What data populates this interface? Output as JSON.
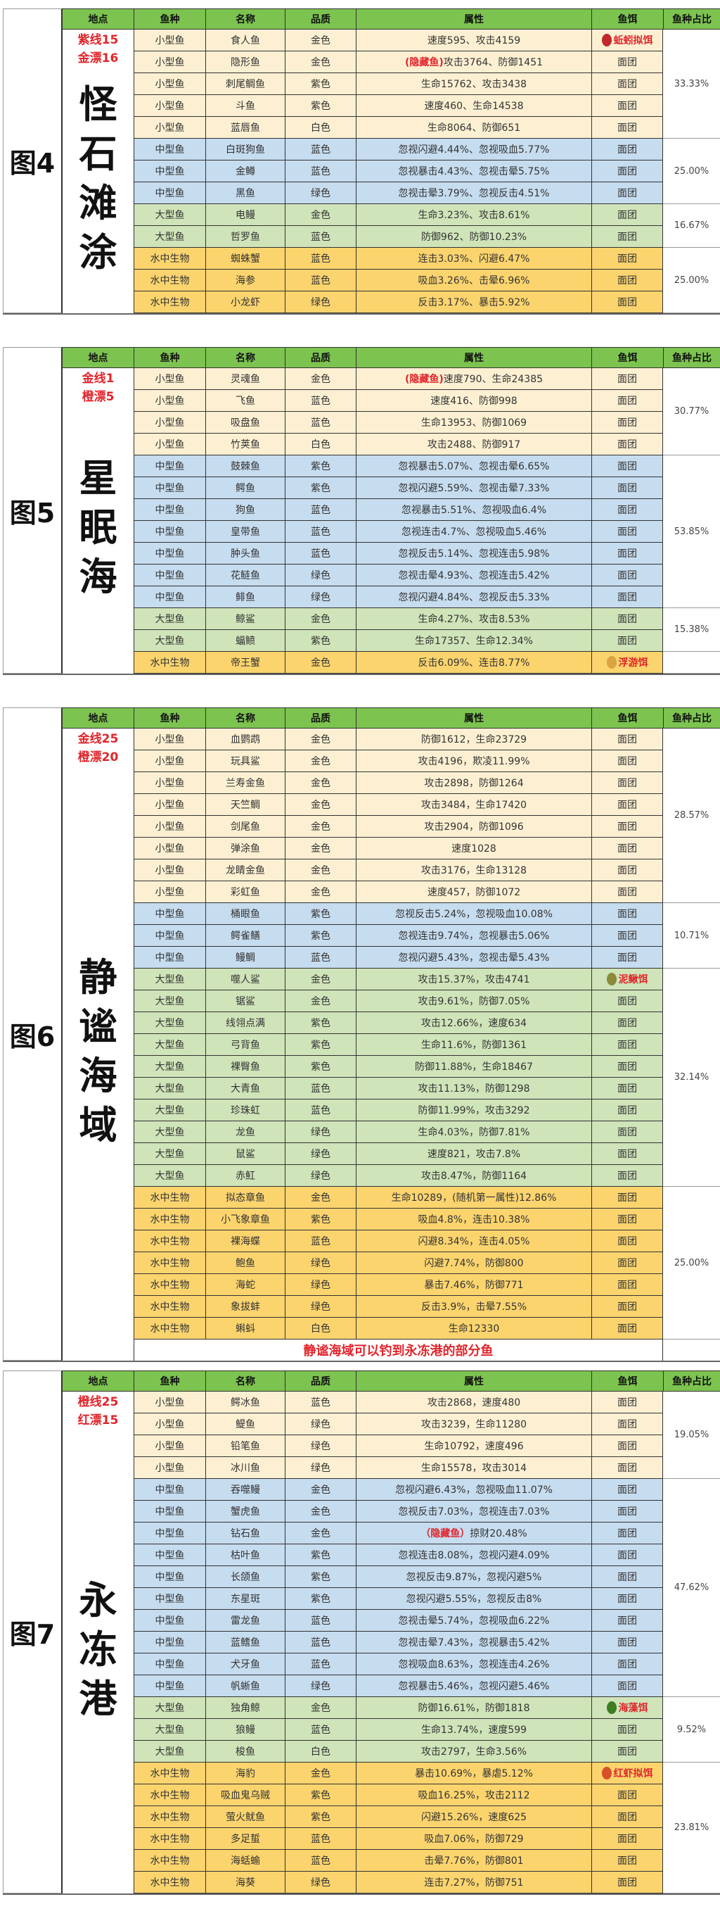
{
  "columns": [
    "地点",
    "鱼种",
    "名称",
    "品质",
    "属性",
    "鱼饵",
    "鱼种占比"
  ],
  "colors": {
    "header": "#7cc350",
    "小型鱼": "#fdf0d2",
    "中型鱼": "#c6dcef",
    "大型鱼": "#cfe4b9",
    "水中生物": "#fbd46e",
    "highlight": "#e0252b"
  },
  "tables": [
    {
      "fig": "图4",
      "place": "怪石滩涂",
      "rod": [
        "紫线15",
        "金漂16"
      ],
      "groups": [
        {
          "type": "小型鱼",
          "ratio": "33.33%",
          "fish": [
            {
              "name": "食人鱼",
              "quality": "金色",
              "attr": "速度595、攻击4159",
              "bait": "蚯蚓拟饵",
              "bait_icon": "worm-icon",
              "bait_color": "#c0282d"
            },
            {
              "name": "隐形鱼",
              "quality": "金色",
              "hidden": "(隐藏鱼)",
              "attr": "攻击3764、防御1451",
              "bait": "面团"
            },
            {
              "name": "刺尾鲷鱼",
              "quality": "紫色",
              "attr": "生命15762、攻击3438",
              "bait": "面团"
            },
            {
              "name": "斗鱼",
              "quality": "紫色",
              "attr": "速度460、生命14538",
              "bait": "面团"
            },
            {
              "name": "蓝唇鱼",
              "quality": "白色",
              "attr": "生命8064、防御651",
              "bait": "面团"
            }
          ]
        },
        {
          "type": "中型鱼",
          "ratio": "25.00%",
          "fish": [
            {
              "name": "白斑狗鱼",
              "quality": "蓝色",
              "attr": "忽视闪避4.44%、忽视吸血5.77%",
              "bait": "面团"
            },
            {
              "name": "金鳟",
              "quality": "蓝色",
              "attr": "忽视暴击4.43%、忽视击晕5.75%",
              "bait": "面团"
            },
            {
              "name": "黑鱼",
              "quality": "绿色",
              "attr": "忽视击晕3.79%、忽视反击4.51%",
              "bait": "面团"
            }
          ]
        },
        {
          "type": "大型鱼",
          "ratio": "16.67%",
          "fish": [
            {
              "name": "电鳗",
              "quality": "金色",
              "attr": "生命3.23%、攻击8.61%",
              "bait": "面团"
            },
            {
              "name": "哲罗鱼",
              "quality": "蓝色",
              "attr": "防御962、防御10.23%",
              "bait": "面团"
            }
          ]
        },
        {
          "type": "水中生物",
          "ratio": "25.00%",
          "fish": [
            {
              "name": "蜘蛛蟹",
              "quality": "蓝色",
              "attr": "连击3.03%、闪避6.47%",
              "bait": "面团"
            },
            {
              "name": "海参",
              "quality": "蓝色",
              "attr": "吸血3.26%、击晕6.96%",
              "bait": "面团"
            },
            {
              "name": "小龙虾",
              "quality": "绿色",
              "attr": "反击3.17%、暴击5.92%",
              "bait": "面团"
            }
          ]
        }
      ]
    },
    {
      "fig": "图5",
      "place": "星眠海",
      "rod": [
        "金线1",
        "橙漂5"
      ],
      "groups": [
        {
          "type": "小型鱼",
          "ratio": "30.77%",
          "fish": [
            {
              "name": "灵魂鱼",
              "quality": "金色",
              "hidden": "(隐藏鱼)",
              "attr": "速度790、生命24385",
              "bait": "面团"
            },
            {
              "name": "飞鱼",
              "quality": "蓝色",
              "attr": "速度416、防御998",
              "bait": "面团"
            },
            {
              "name": "吸盘鱼",
              "quality": "蓝色",
              "attr": "生命13953、防御1069",
              "bait": "面团"
            },
            {
              "name": "竹荚鱼",
              "quality": "白色",
              "attr": "攻击2488、防御917",
              "bait": "面团"
            }
          ]
        },
        {
          "type": "中型鱼",
          "ratio": "53.85%",
          "fish": [
            {
              "name": "鼓棘鱼",
              "quality": "紫色",
              "attr": "忽视暴击5.07%、忽视击晕6.65%",
              "bait": "面团"
            },
            {
              "name": "鳄鱼",
              "quality": "紫色",
              "attr": "忽视闪避5.59%、忽视击晕7.33%",
              "bait": "面团"
            },
            {
              "name": "狗鱼",
              "quality": "蓝色",
              "attr": "忽视暴击5.51%、忽视吸血6.4%",
              "bait": "面团"
            },
            {
              "name": "皇带鱼",
              "quality": "蓝色",
              "attr": "忽视连击4.7%、忽视吸血5.46%",
              "bait": "面团"
            },
            {
              "name": "肿头鱼",
              "quality": "蓝色",
              "attr": "忽视反击5.14%、忽视连击5.98%",
              "bait": "面团"
            },
            {
              "name": "花鲢鱼",
              "quality": "绿色",
              "attr": "忽视击晕4.93%、忽视连击5.42%",
              "bait": "面团"
            },
            {
              "name": "鲱鱼",
              "quality": "绿色",
              "attr": "忽视闪避4.84%、忽视反击5.33%",
              "bait": "面团"
            }
          ]
        },
        {
          "type": "大型鱼",
          "ratio": "15.38%",
          "fish": [
            {
              "name": "鲸鲨",
              "quality": "金色",
              "attr": "生命4.27%、攻击8.53%",
              "bait": "面团"
            },
            {
              "name": "蝠鲼",
              "quality": "紫色",
              "attr": "生命17357、生命12.34%",
              "bait": "面团"
            }
          ]
        },
        {
          "type": "水中生物",
          "ratio": "",
          "fish": [
            {
              "name": "帝王蟹",
              "quality": "金色",
              "attr": "反击6.09%、连击8.77%",
              "bait": "浮游饵",
              "bait_icon": "dragonfly-icon",
              "bait_color": "#d9a441"
            }
          ]
        }
      ]
    },
    {
      "fig": "图6",
      "place": "静谧海域",
      "rod": [
        "金线25",
        "橙漂20"
      ],
      "note": "静谧海域可以钓到永冻港的部分鱼",
      "groups": [
        {
          "type": "小型鱼",
          "ratio": "28.57%",
          "fish": [
            {
              "name": "血鹦鹉",
              "quality": "金色",
              "attr": "防御1612，生命23729",
              "bait": "面团"
            },
            {
              "name": "玩具鲨",
              "quality": "金色",
              "attr": "攻击4196，欺凌11.99%",
              "bait": "面团"
            },
            {
              "name": "兰寿金鱼",
              "quality": "金色",
              "attr": "攻击2898，防御1264",
              "bait": "面团"
            },
            {
              "name": "天竺鲷",
              "quality": "金色",
              "attr": "攻击3484，生命17420",
              "bait": "面团"
            },
            {
              "name": "剑尾鱼",
              "quality": "金色",
              "attr": "攻击2904，防御1096",
              "bait": "面团"
            },
            {
              "name": "弹涂鱼",
              "quality": "金色",
              "attr": "速度1028",
              "bait": "面团"
            },
            {
              "name": "龙睛金鱼",
              "quality": "金色",
              "attr": "攻击3176，生命13128",
              "bait": "面团"
            },
            {
              "name": "彩虹鱼",
              "quality": "金色",
              "attr": "速度457，防御1072",
              "bait": "面团"
            }
          ]
        },
        {
          "type": "中型鱼",
          "ratio": "10.71%",
          "fish": [
            {
              "name": "桶眼鱼",
              "quality": "紫色",
              "attr": "忽视反击5.24%，忽视吸血10.08%",
              "bait": "面团"
            },
            {
              "name": "鳄雀鳝",
              "quality": "紫色",
              "attr": "忽视连击9.74%，忽视暴击5.06%",
              "bait": "面团"
            },
            {
              "name": "鳗鲷",
              "quality": "蓝色",
              "attr": "忽视闪避5.43%，忽视击晕5.43%",
              "bait": "面团"
            }
          ]
        },
        {
          "type": "大型鱼",
          "ratio": "32.14%",
          "fish": [
            {
              "name": "噬人鲨",
              "quality": "金色",
              "attr": "攻击15.37%，攻击4741",
              "bait": "泥鳅饵",
              "bait_icon": "loach-icon",
              "bait_color": "#8a8a3a"
            },
            {
              "name": "锯鲨",
              "quality": "金色",
              "attr": "攻击9.61%，防御7.05%",
              "bait": "面团"
            },
            {
              "name": "线翎点满",
              "quality": "紫色",
              "attr": "攻击12.66%，速度634",
              "bait": "面团"
            },
            {
              "name": "弓背鱼",
              "quality": "紫色",
              "attr": "生命11.6%，防御1361",
              "bait": "面团"
            },
            {
              "name": "裸臀鱼",
              "quality": "紫色",
              "attr": "防御11.88%，生命18467",
              "bait": "面团"
            },
            {
              "name": "大青鱼",
              "quality": "蓝色",
              "attr": "攻击11.13%，防御1298",
              "bait": "面团"
            },
            {
              "name": "珍珠虹",
              "quality": "蓝色",
              "attr": "防御11.99%，攻击3292",
              "bait": "面团"
            },
            {
              "name": "龙鱼",
              "quality": "绿色",
              "attr": "生命4.03%，防御7.81%",
              "bait": "面团"
            },
            {
              "name": "鼠鲨",
              "quality": "绿色",
              "attr": "速度821，攻击7.8%",
              "bait": "面团"
            },
            {
              "name": "赤魟",
              "quality": "绿色",
              "attr": "攻击8.47%，防御1164",
              "bait": "面团"
            }
          ]
        },
        {
          "type": "水中生物",
          "ratio": "25.00%",
          "fish": [
            {
              "name": "拟态章鱼",
              "quality": "金色",
              "attr": "生命10289，(随机第一属性)12.86%",
              "bait": "面团"
            },
            {
              "name": "小飞象章鱼",
              "quality": "紫色",
              "attr": "吸血4.8%，连击10.38%",
              "bait": "面团"
            },
            {
              "name": "裸海蝶",
              "quality": "蓝色",
              "attr": "闪避8.34%，连击4.05%",
              "bait": "面团"
            },
            {
              "name": "鲍鱼",
              "quality": "绿色",
              "attr": "闪避7.74%，防御800",
              "bait": "面团"
            },
            {
              "name": "海蛇",
              "quality": "绿色",
              "attr": "暴击7.46%，防御771",
              "bait": "面团"
            },
            {
              "name": "象拔蚌",
              "quality": "绿色",
              "attr": "反击3.9%，击晕7.55%",
              "bait": "面团"
            },
            {
              "name": "蝌蚪",
              "quality": "白色",
              "attr": "生命12330",
              "bait": "面团"
            }
          ]
        }
      ]
    },
    {
      "fig": "图7",
      "place": "永冻港",
      "rod": [
        "橙线25",
        "红漂15"
      ],
      "groups": [
        {
          "type": "小型鱼",
          "ratio": "19.05%",
          "fish": [
            {
              "name": "鳄冰鱼",
              "quality": "蓝色",
              "attr": "攻击2868，速度480",
              "bait": "面团"
            },
            {
              "name": "鳀鱼",
              "quality": "绿色",
              "attr": "攻击3239，生命11280",
              "bait": "面团"
            },
            {
              "name": "铅笔鱼",
              "quality": "绿色",
              "attr": "生命10792，速度496",
              "bait": "面团"
            },
            {
              "name": "冰川鱼",
              "quality": "绿色",
              "attr": "生命15578，攻击3014",
              "bait": "面团"
            }
          ]
        },
        {
          "type": "中型鱼",
          "ratio": "47.62%",
          "fish": [
            {
              "name": "吞噬鳗",
              "quality": "金色",
              "attr": "忽视闪避6.43%，忽视吸血11.07%",
              "bait": "面团"
            },
            {
              "name": "蟹虎鱼",
              "quality": "金色",
              "attr": "忽视反击7.03%，忽视连击7.03%",
              "bait": "面团"
            },
            {
              "name": "钻石鱼",
              "quality": "金色",
              "hidden": "（隐藏鱼）",
              "attr": "掠财20.48%",
              "bait": "面团"
            },
            {
              "name": "枯叶鱼",
              "quality": "紫色",
              "attr": "忽视连击8.08%，忽视闪避4.09%",
              "bait": "面团"
            },
            {
              "name": "长颌鱼",
              "quality": "紫色",
              "attr": "忽视反击9.87%，忽视闪避5%",
              "bait": "面团"
            },
            {
              "name": "东星斑",
              "quality": "紫色",
              "attr": "忽视闪避5.55%，忽视反击8%",
              "bait": "面团"
            },
            {
              "name": "雷龙鱼",
              "quality": "蓝色",
              "attr": "忽视击晕5.74%，忽视吸血6.22%",
              "bait": "面团"
            },
            {
              "name": "蓝鳍鱼",
              "quality": "蓝色",
              "attr": "忽视击晕7.43%，忽视暴击5.42%",
              "bait": "面团"
            },
            {
              "name": "犬牙鱼",
              "quality": "蓝色",
              "attr": "忽视吸血8.63%，忽视连击4.26%",
              "bait": "面团"
            },
            {
              "name": "帆蜥鱼",
              "quality": "绿色",
              "attr": "忽视暴击5.46%，忽视闪避5.46%",
              "bait": "面团"
            }
          ]
        },
        {
          "type": "大型鱼",
          "ratio": "9.52%",
          "fish": [
            {
              "name": "独角鲸",
              "quality": "金色",
              "attr": "防御16.61%，防御1818",
              "bait": "海藻饵",
              "bait_icon": "seaweed-icon",
              "bait_color": "#3f7d22"
            },
            {
              "name": "狼鳗",
              "quality": "蓝色",
              "attr": "生命13.74%，速度599",
              "bait": "面团"
            },
            {
              "name": "梭鱼",
              "quality": "白色",
              "attr": "攻击2797，生命3.56%",
              "bait": "面团"
            }
          ]
        },
        {
          "type": "水中生物",
          "ratio": "23.81%",
          "fish": [
            {
              "name": "海豹",
              "quality": "金色",
              "attr": "暴击10.69%，暴虐5.12%",
              "bait": "红虾拟饵",
              "bait_icon": "shrimp-icon",
              "bait_color": "#d8502a"
            },
            {
              "name": "吸血鬼乌贼",
              "quality": "紫色",
              "attr": "吸血16.25%，攻击2112",
              "bait": "面团"
            },
            {
              "name": "萤火鱿鱼",
              "quality": "紫色",
              "attr": "闪避15.26%，速度625",
              "bait": "面团"
            },
            {
              "name": "多足蜇",
              "quality": "蓝色",
              "attr": "吸血7.06%，防御729",
              "bait": "面团"
            },
            {
              "name": "海蛞蝓",
              "quality": "蓝色",
              "attr": "击晕7.76%，防御801",
              "bait": "面团"
            },
            {
              "name": "海葵",
              "quality": "绿色",
              "attr": "连击7.27%，防御751",
              "bait": "面团"
            }
          ]
        }
      ]
    }
  ]
}
